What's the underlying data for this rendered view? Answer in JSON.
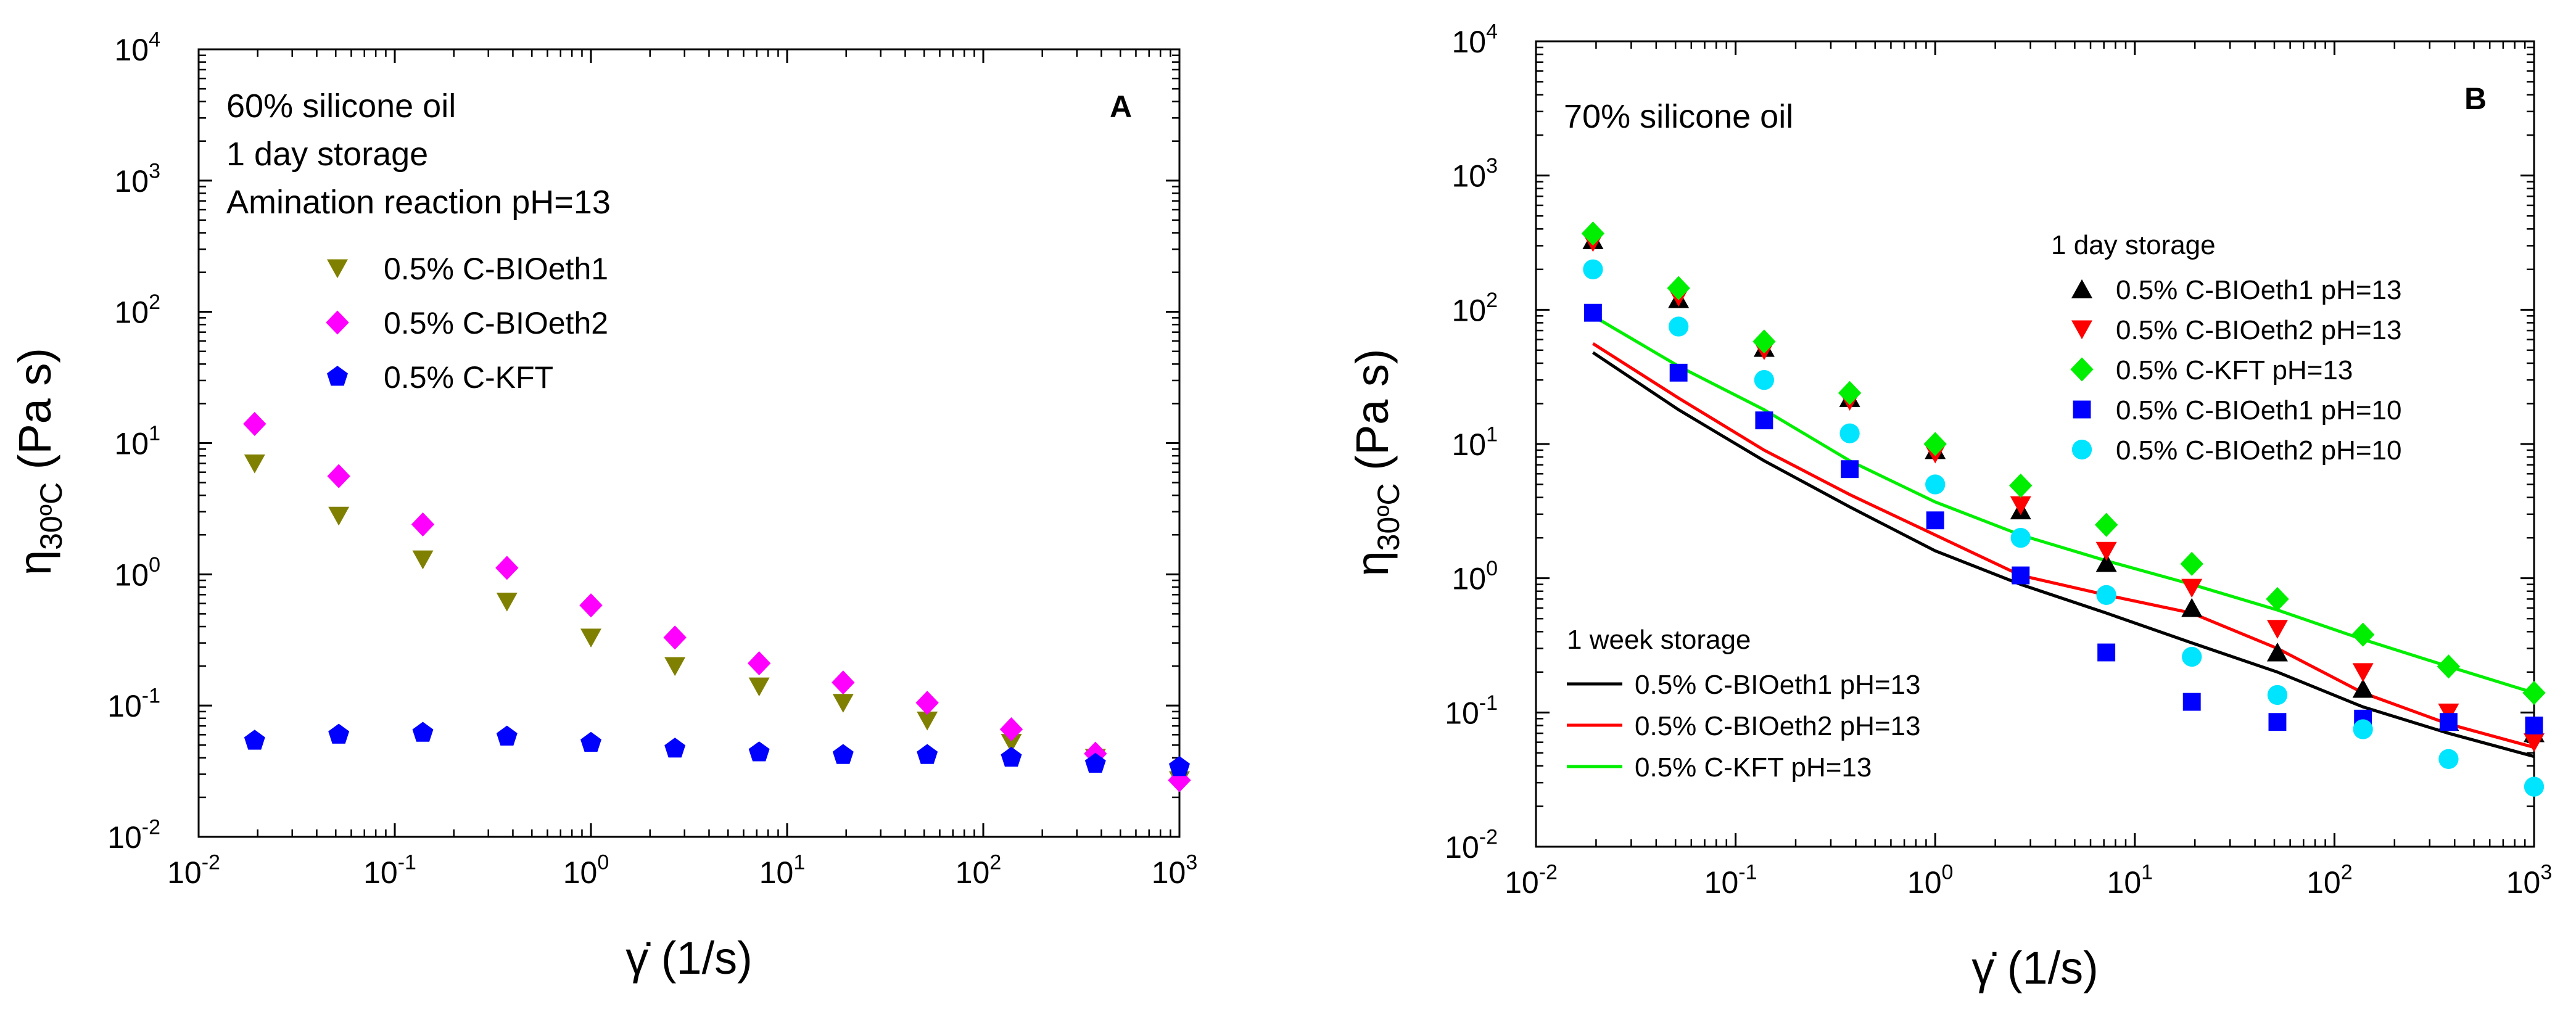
{
  "chart_data": [
    {
      "type": "scatter",
      "panel_letter": "A",
      "notes": [
        "60% silicone oil",
        "1 day storage",
        "Amination reaction pH=13"
      ],
      "xlabel": "γ̇ (1/s)",
      "ylabel": "η30ºC (Pa s)",
      "xscale": "log",
      "yscale": "log",
      "xlim": [
        0.01,
        1000
      ],
      "ylim": [
        0.01,
        10000
      ],
      "x_ticks": [
        0.01,
        0.1,
        1,
        10,
        100,
        1000
      ],
      "y_ticks": [
        0.01,
        0.1,
        1,
        10,
        100,
        1000,
        10000
      ],
      "x_tick_labels": [
        [
          "10",
          "-2"
        ],
        [
          "10",
          "-1"
        ],
        [
          "10",
          "0"
        ],
        [
          "10",
          "1"
        ],
        [
          "10",
          "2"
        ],
        [
          "10",
          "3"
        ]
      ],
      "y_tick_labels": [
        [
          "10",
          "-2"
        ],
        [
          "10",
          "-1"
        ],
        [
          "10",
          "0"
        ],
        [
          "10",
          "1"
        ],
        [
          "10",
          "2"
        ],
        [
          "10",
          "3"
        ],
        [
          "10",
          "4"
        ]
      ],
      "legend": {
        "position": "upper-left"
      },
      "x": [
        0.0193,
        0.0518,
        0.139,
        0.373,
        1.0,
        2.68,
        7.2,
        19.3,
        51.8,
        139,
        373,
        1000
      ],
      "series": [
        {
          "name": "0.5% C-BIOeth1",
          "marker": "triangle-down",
          "color": "#808000",
          "values": [
            7.0,
            2.8,
            1.3,
            0.62,
            0.33,
            0.2,
            0.14,
            0.105,
            0.077,
            0.052,
            0.04,
            0.027
          ]
        },
        {
          "name": "0.5% C-BIOeth2",
          "marker": "diamond",
          "color": "#ff00ff",
          "values": [
            14,
            5.6,
            2.4,
            1.12,
            0.58,
            0.33,
            0.21,
            0.15,
            0.105,
            0.066,
            0.043,
            0.027
          ]
        },
        {
          "name": "0.5% C-KFT",
          "marker": "pentagon",
          "color": "#0000ff",
          "values": [
            0.054,
            0.06,
            0.062,
            0.058,
            0.052,
            0.047,
            0.044,
            0.042,
            0.042,
            0.04,
            0.036,
            0.034
          ]
        }
      ]
    },
    {
      "type": "scatter",
      "panel_letter": "B",
      "notes": [
        "70% silicone oil"
      ],
      "xlabel": "γ̇ (1/s)",
      "ylabel": "η30ºC (Pa s)",
      "xscale": "log",
      "yscale": "log",
      "xlim": [
        0.01,
        1000
      ],
      "ylim": [
        0.01,
        10000
      ],
      "x_ticks": [
        0.01,
        0.1,
        1,
        10,
        100,
        1000
      ],
      "y_ticks": [
        0.01,
        0.1,
        1,
        10,
        100,
        1000,
        10000
      ],
      "x_tick_labels": [
        [
          "10",
          "-2"
        ],
        [
          "10",
          "-1"
        ],
        [
          "10",
          "0"
        ],
        [
          "10",
          "1"
        ],
        [
          "10",
          "2"
        ],
        [
          "10",
          "3"
        ]
      ],
      "y_tick_labels": [
        [
          "10",
          "-2"
        ],
        [
          "10",
          "-1"
        ],
        [
          "10",
          "0"
        ],
        [
          "10",
          "1"
        ],
        [
          "10",
          "2"
        ],
        [
          "10",
          "3"
        ],
        [
          "10",
          "4"
        ]
      ],
      "legend_scatter": {
        "title": "1 day storage",
        "position": "upper-right"
      },
      "legend_lines": {
        "title": "1 week storage",
        "position": "lower-left"
      },
      "x": [
        0.0193,
        0.0518,
        0.139,
        0.373,
        1.0,
        2.68,
        7.2,
        19.3,
        51.8,
        139,
        373,
        1000
      ],
      "series": [
        {
          "name": "0.5% C-BIOeth1  pH=13",
          "marker": "triangle-up",
          "color": "#000000",
          "values": [
            330,
            120,
            52,
            22,
            9,
            3.2,
            1.3,
            0.6,
            0.28,
            0.15,
            0.085,
            0.07
          ]
        },
        {
          "name": "0.5% C-BIOeth2  pH=13",
          "marker": "triangle-down",
          "color": "#ff0000",
          "values": [
            320,
            125,
            50,
            21,
            8.5,
            3.5,
            1.6,
            0.85,
            0.42,
            0.2,
            0.1,
            0.06
          ]
        },
        {
          "name": "0.5% C-KFT pH=13",
          "marker": "diamond",
          "color": "#00ee00",
          "values": [
            370,
            145,
            58,
            24,
            10,
            4.9,
            2.5,
            1.28,
            0.7,
            0.38,
            0.22,
            0.14
          ]
        },
        {
          "name": "0.5% C-BIOeth1 pH=10",
          "marker": "square",
          "color": "#0000ff",
          "values": [
            95,
            34,
            15,
            6.5,
            2.7,
            1.05,
            0.28,
            0.12,
            0.085,
            0.09,
            0.085,
            0.08
          ]
        },
        {
          "name": "0.5% C-BIOeth2 pH=10",
          "marker": "circle",
          "color": "#00e5ff",
          "values": [
            200,
            75,
            30,
            12,
            5,
            2,
            0.75,
            0.26,
            0.135,
            0.075,
            0.045,
            0.028
          ]
        }
      ],
      "lines": [
        {
          "name": "0.5% C-BIOeth1 pH=13",
          "color": "#000000",
          "values": [
            48,
            18,
            7.5,
            3.4,
            1.6,
            0.9,
            0.55,
            0.33,
            0.2,
            0.11,
            0.07,
            0.047
          ]
        },
        {
          "name": "0.5% C-BIOeth2 pH=13",
          "color": "#ff0000",
          "values": [
            56,
            22,
            9,
            4.2,
            2.1,
            1.05,
            0.75,
            0.55,
            0.3,
            0.14,
            0.082,
            0.055
          ]
        },
        {
          "name": "0.5% C-KFT pH=13",
          "color": "#00ee00",
          "values": [
            90,
            38,
            18,
            7.5,
            3.7,
            2.1,
            1.35,
            0.9,
            0.58,
            0.35,
            0.22,
            0.14
          ]
        }
      ]
    }
  ]
}
